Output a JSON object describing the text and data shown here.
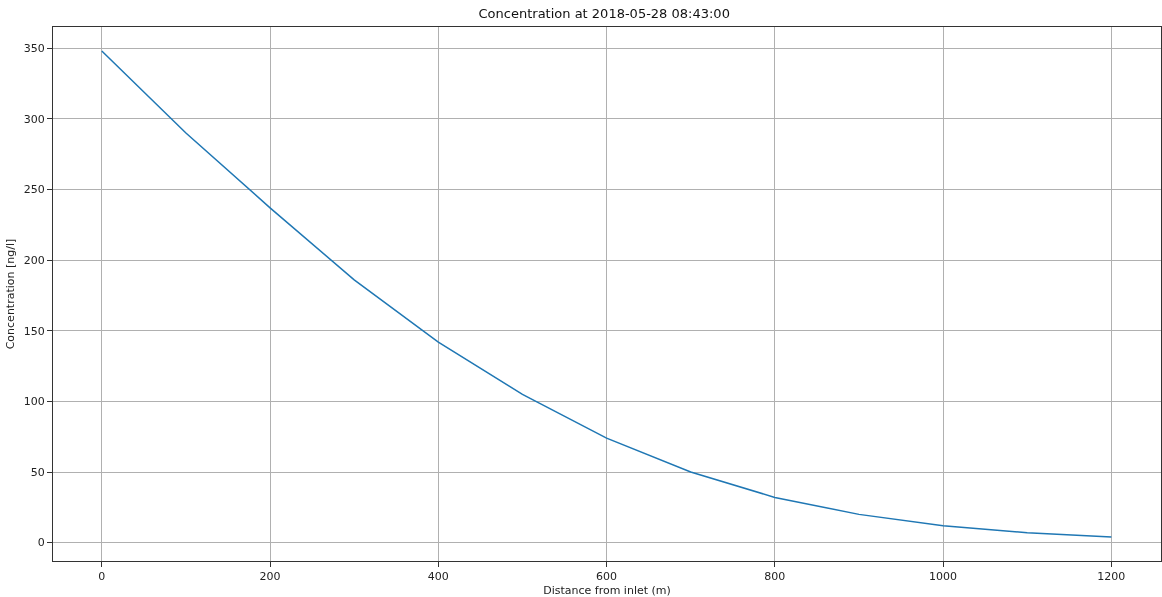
{
  "chart_data": {
    "type": "line",
    "title": "Concentration at 2018-05-28 08:43:00",
    "xlabel": "Distance from inlet (m)",
    "ylabel": "Concentration [ng/l]",
    "x": [
      0,
      100,
      200,
      300,
      400,
      500,
      600,
      700,
      800,
      900,
      1000,
      1100,
      1200
    ],
    "series": [
      {
        "color": "#1f77b4",
        "values": [
          348,
          290,
          237,
          186,
          142,
          105,
          74,
          50,
          32,
          20,
          12,
          7,
          4
        ]
      }
    ],
    "xlim": [
      -58,
      1259
    ],
    "ylim": [
      -13,
      365
    ],
    "xticks": [
      0,
      200,
      400,
      600,
      800,
      1000,
      1200
    ],
    "yticks": [
      0,
      50,
      100,
      150,
      200,
      250,
      300,
      350
    ],
    "grid": true,
    "marker": "none",
    "line_style": "solid"
  }
}
